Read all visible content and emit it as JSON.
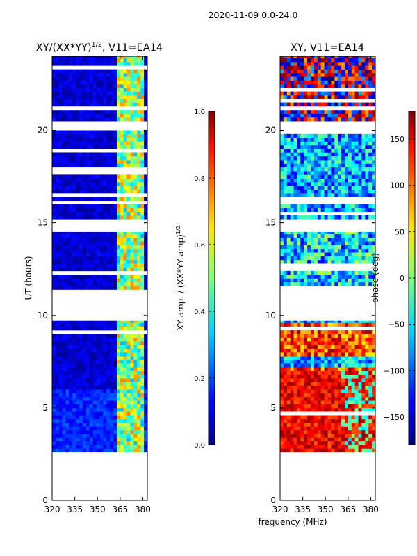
{
  "suptitle": "2020-11-09 0.0-24.0",
  "chart_data": [
    {
      "type": "heatmap",
      "title_main": "XY/(XX*YY)",
      "title_sup": "1/2",
      "title_tail": ", V11=EA14",
      "xlabel": "",
      "ylabel": "UT (hours)",
      "xlim": [
        320,
        383
      ],
      "ylim": [
        0,
        24
      ],
      "xticks": [
        320,
        335,
        350,
        365,
        380
      ],
      "yticks": [
        0,
        5,
        10,
        15,
        20
      ],
      "data_hour_bands": [
        [
          2.6,
          9.7
        ],
        [
          11.4,
          14.5
        ],
        [
          15.2,
          20.0
        ],
        [
          20.5,
          24.0
        ]
      ],
      "bright_freq_band_mhz": [
        363,
        380
      ],
      "colorbar": {
        "label_main": "XY amp. / (XX*YY amp)",
        "label_sup": "1/2",
        "range": [
          0.0,
          1.0
        ],
        "ticks": [
          "0.0",
          "0.2",
          "0.4",
          "0.6",
          "0.8",
          "1.0"
        ],
        "tick_values": [
          0.0,
          0.2,
          0.4,
          0.6,
          0.8,
          1.0
        ]
      }
    },
    {
      "type": "heatmap",
      "title_main": "XY, V11=EA14",
      "xlabel": "frequency (MHz)",
      "ylabel": "",
      "xlim": [
        320,
        383
      ],
      "ylim": [
        0,
        24
      ],
      "xticks": [
        320,
        335,
        350,
        365,
        380
      ],
      "yticks": [
        0,
        5,
        10,
        15,
        20
      ],
      "data_hour_bands": [
        [
          2.6,
          9.7
        ],
        [
          11.4,
          14.5
        ],
        [
          15.2,
          20.0
        ],
        [
          20.5,
          24.0
        ]
      ],
      "colorbar": {
        "label_main": "phase (deg)",
        "range": [
          -180,
          180
        ],
        "ticks": [
          "150",
          "100",
          "50",
          "0",
          "−50",
          "−100",
          "−150"
        ],
        "tick_values": [
          150,
          100,
          50,
          0,
          -50,
          -100,
          -150
        ]
      }
    }
  ]
}
